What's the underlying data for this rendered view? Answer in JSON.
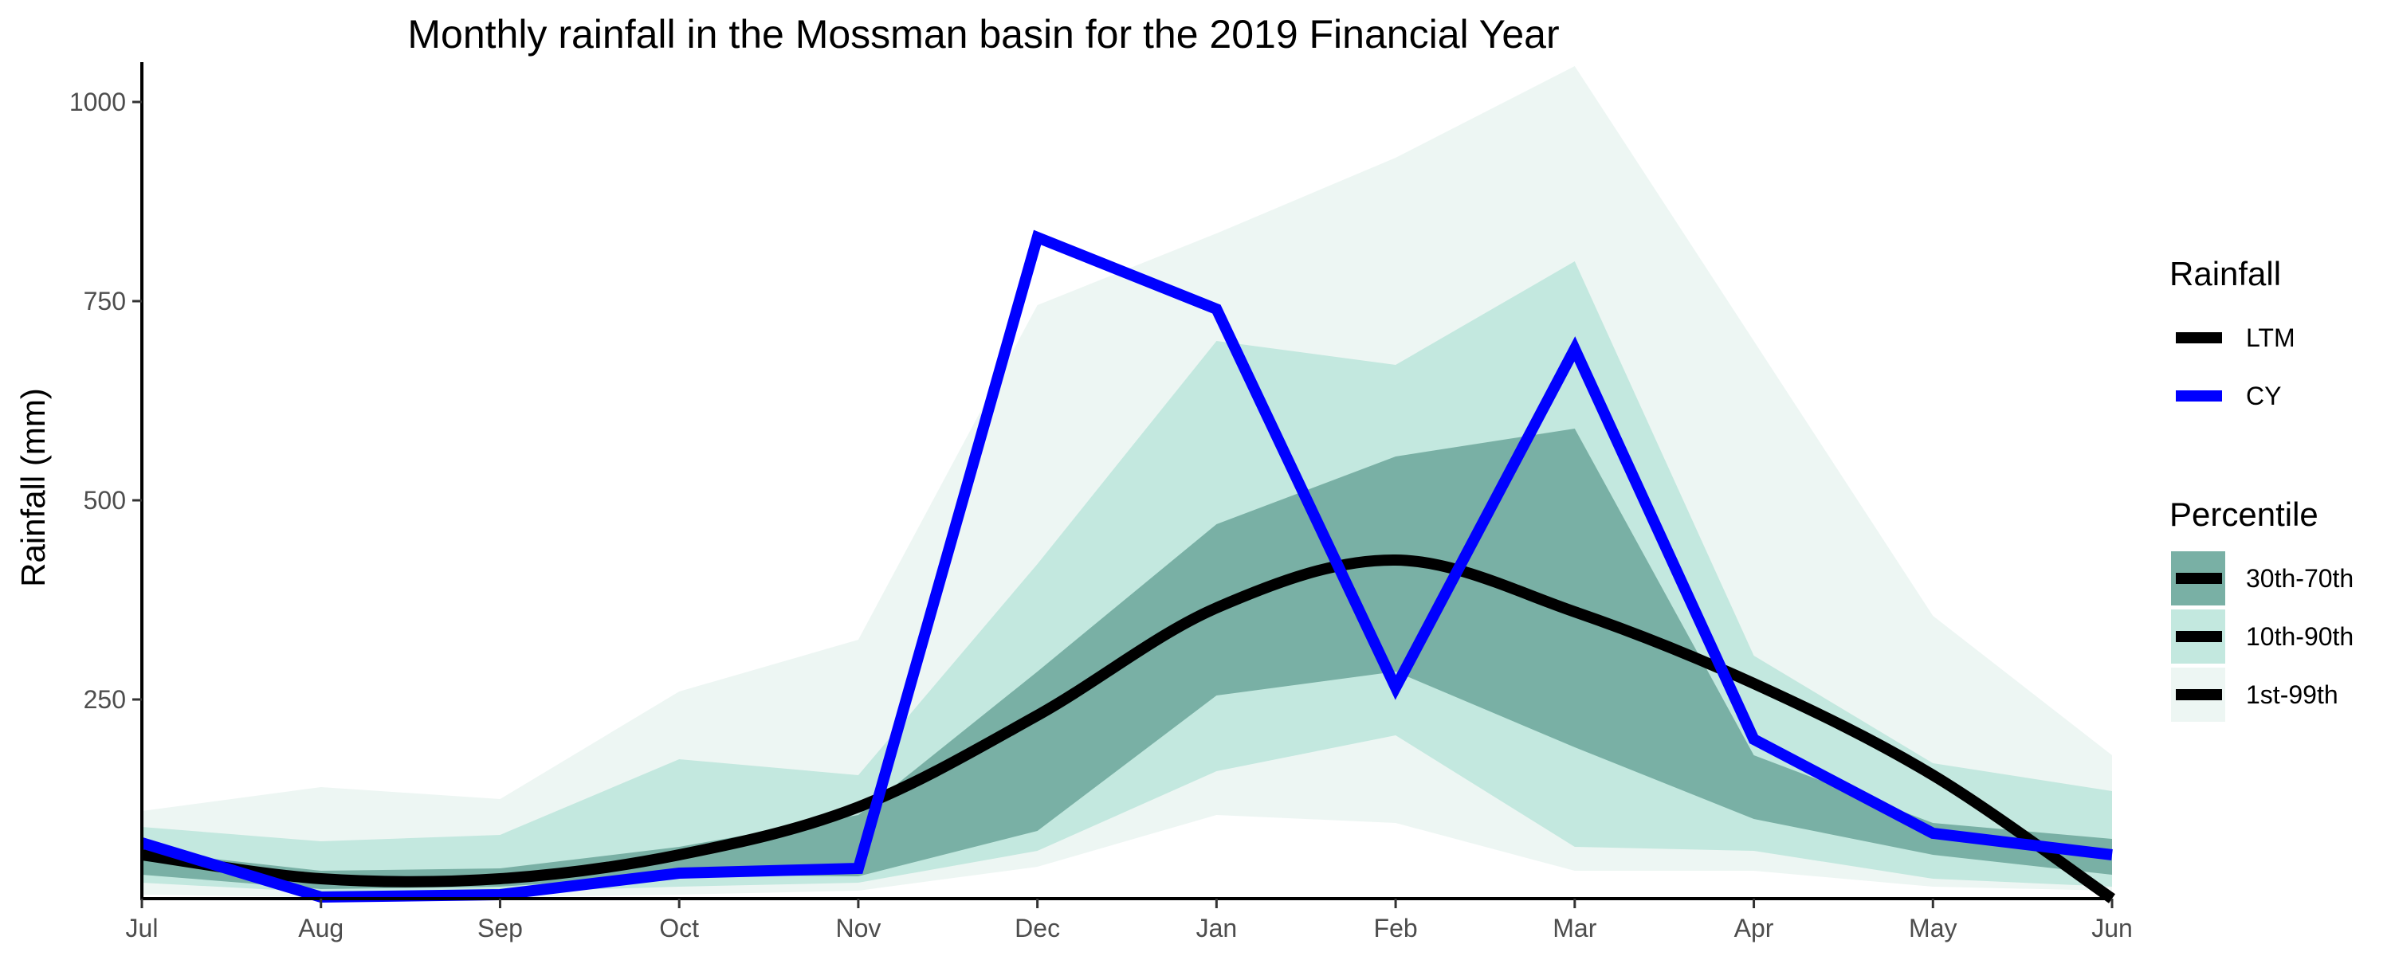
{
  "chart_data": {
    "type": "line",
    "title": "Monthly rainfall in the Mossman basin for the 2019 Financial Year",
    "xlabel": "",
    "ylabel": "Rainfall (mm)",
    "categories": [
      "Jul",
      "Aug",
      "Sep",
      "Oct",
      "Nov",
      "Dec",
      "Jan",
      "Feb",
      "Mar",
      "Apr",
      "May",
      "Jun"
    ],
    "ylim": [
      0,
      1040
    ],
    "yticks": [
      250,
      500,
      750,
      1000
    ],
    "grid": false,
    "series": [
      {
        "name": "LTM",
        "color": "#000000",
        "values": [
          55,
          25,
          25,
          55,
          115,
          230,
          365,
          425,
          360,
          270,
          155,
          0
        ]
      },
      {
        "name": "CY",
        "color": "#0000ff",
        "values": [
          70,
          2,
          5,
          32,
          38,
          830,
          740,
          265,
          690,
          200,
          82,
          55
        ]
      }
    ],
    "bands": [
      {
        "name": "1st-99th",
        "color": "#edf6f3",
        "lower": [
          5,
          2,
          2,
          5,
          10,
          40,
          105,
          95,
          35,
          35,
          15,
          10
        ],
        "upper": [
          110,
          140,
          125,
          260,
          325,
          745,
          835,
          930,
          1045,
          700,
          355,
          180
        ]
      },
      {
        "name": "10th-90th",
        "color": "#c3e8df",
        "lower": [
          20,
          8,
          8,
          15,
          20,
          60,
          160,
          205,
          65,
          60,
          25,
          15
        ],
        "upper": [
          90,
          72,
          80,
          175,
          155,
          420,
          700,
          670,
          800,
          305,
          170,
          135
        ]
      },
      {
        "name": "30th-70th",
        "color": "#79b0a5",
        "lower": [
          30,
          12,
          15,
          30,
          28,
          85,
          255,
          285,
          190,
          100,
          55,
          30
        ],
        "upper": [
          60,
          35,
          38,
          65,
          105,
          285,
          470,
          555,
          590,
          180,
          95,
          75
        ]
      }
    ],
    "legend": {
      "placement": "right",
      "rainfall_title": "Rainfall",
      "rainfall_items": [
        "LTM",
        "CY"
      ],
      "percentile_title": "Percentile",
      "percentile_items": [
        "30th-70th",
        "10th-90th",
        "1st-99th"
      ]
    }
  }
}
